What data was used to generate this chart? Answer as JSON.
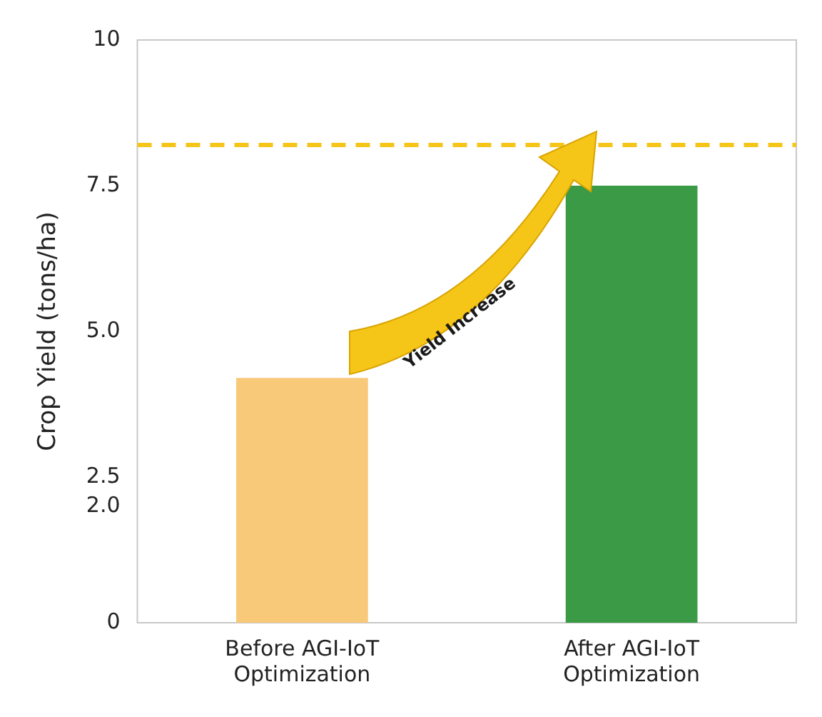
{
  "chart_data": {
    "type": "bar",
    "ylabel": "Crop Yield (tons/ha)",
    "categories": [
      "Before AGI-IoT Optimization",
      "After AGI-IoT Optimization"
    ],
    "values": [
      4.2,
      7.5
    ],
    "colors": [
      "#f9c97a",
      "#3a9a45"
    ],
    "ylim": [
      0,
      10
    ],
    "yticks": [
      0,
      {
        "value": 2,
        "label": "2.0"
      },
      2.5,
      {
        "value": 5,
        "label": "5.0"
      },
      7.5,
      10
    ],
    "grid": false,
    "legend": false,
    "ref_lines": [
      {
        "axis": "y",
        "value": 8.2,
        "color": "#f5c518",
        "line_style": "dashed"
      }
    ],
    "annotations": [
      "Yield Increase"
    ]
  }
}
